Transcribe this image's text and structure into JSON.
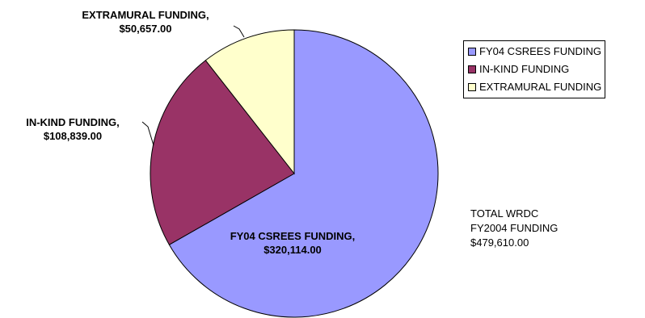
{
  "chart_data": {
    "type": "pie",
    "title": "",
    "slices": [
      {
        "name": "FY04 CSREES FUNDING",
        "value": 320114.0,
        "value_label": "$320,114.00",
        "color": "#9999FF"
      },
      {
        "name": "IN-KIND FUNDING",
        "value": 108839.0,
        "value_label": "$108,839.00",
        "color": "#993366"
      },
      {
        "name": "EXTRAMURAL FUNDING",
        "value": 50657.0,
        "value_label": "$50,657.00",
        "color": "#FFFFCC"
      }
    ],
    "legend": {
      "placement": "top-right",
      "items": [
        "FY04 CSREES FUNDING",
        "IN-KIND FUNDING",
        "EXTRAMURAL FUNDING"
      ]
    },
    "annotation": [
      "TOTAL WRDC",
      "FY2004 FUNDING",
      "$479,610.00"
    ]
  }
}
